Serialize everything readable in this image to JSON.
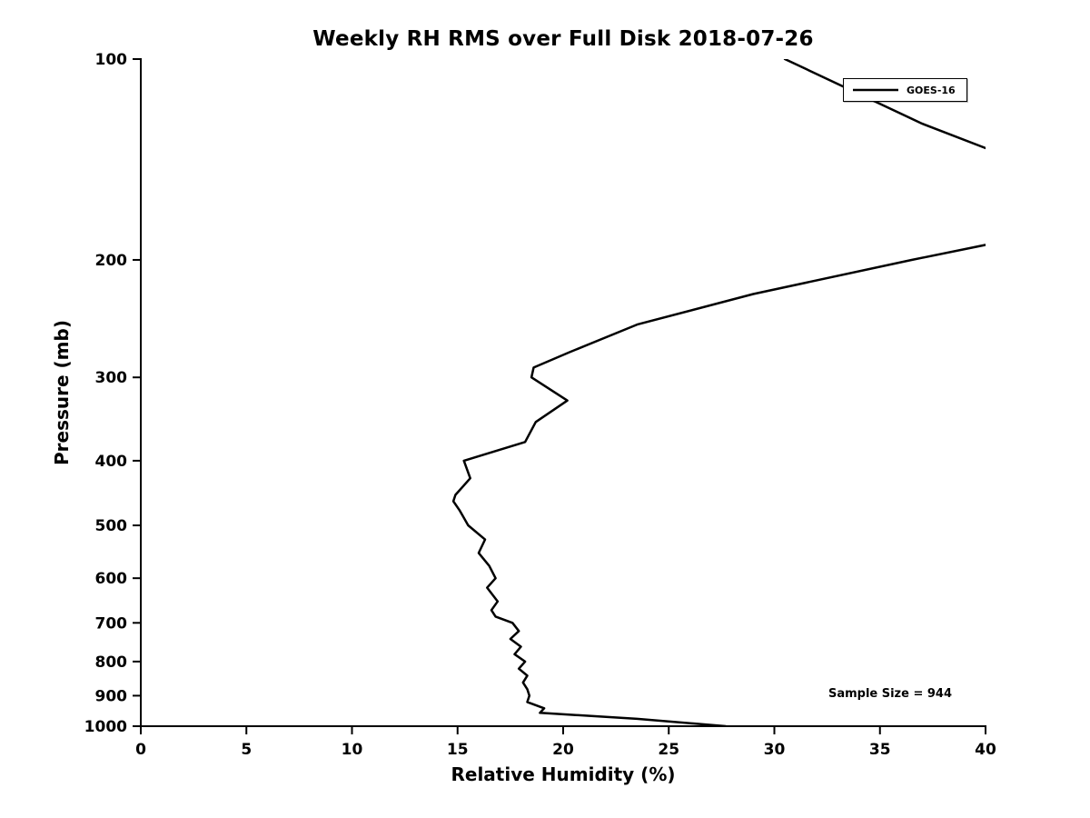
{
  "chart_data": {
    "type": "line",
    "title": "Weekly RH RMS over Full Disk 2018-07-26",
    "xlabel": "Relative Humidity (%)",
    "ylabel": "Pressure (mb)",
    "xlim": [
      0,
      40
    ],
    "ylim": [
      100,
      1000
    ],
    "yscale": "log",
    "y_inverted": true,
    "grid": false,
    "legend_position": "top-right",
    "xticks": [
      0,
      5,
      10,
      15,
      20,
      25,
      30,
      35,
      40
    ],
    "yticks": [
      100,
      200,
      300,
      400,
      500,
      600,
      700,
      800,
      900,
      1000
    ],
    "annotation": "Sample Size = 944",
    "series": [
      {
        "name": "GOES-16",
        "color": "#000000",
        "pressure_mb": [
          100,
          125,
          150,
          175,
          200,
          225,
          250,
          275,
          290,
          300,
          325,
          350,
          375,
          400,
          425,
          450,
          460,
          475,
          500,
          525,
          550,
          575,
          600,
          620,
          650,
          670,
          685,
          700,
          720,
          740,
          760,
          780,
          800,
          820,
          840,
          860,
          880,
          900,
          920,
          940,
          955,
          975,
          1000
        ],
        "rh_percent": [
          30.5,
          37.0,
          43.5,
          45.5,
          36.5,
          29.0,
          23.5,
          20.3,
          18.6,
          18.5,
          20.2,
          18.7,
          18.2,
          15.3,
          15.6,
          14.9,
          14.8,
          15.1,
          15.5,
          16.3,
          16.0,
          16.5,
          16.8,
          16.4,
          16.9,
          16.6,
          16.8,
          17.6,
          17.9,
          17.5,
          18.0,
          17.7,
          18.2,
          17.9,
          18.3,
          18.1,
          18.3,
          18.4,
          18.3,
          19.1,
          18.9,
          23.5,
          27.7
        ]
      }
    ]
  }
}
